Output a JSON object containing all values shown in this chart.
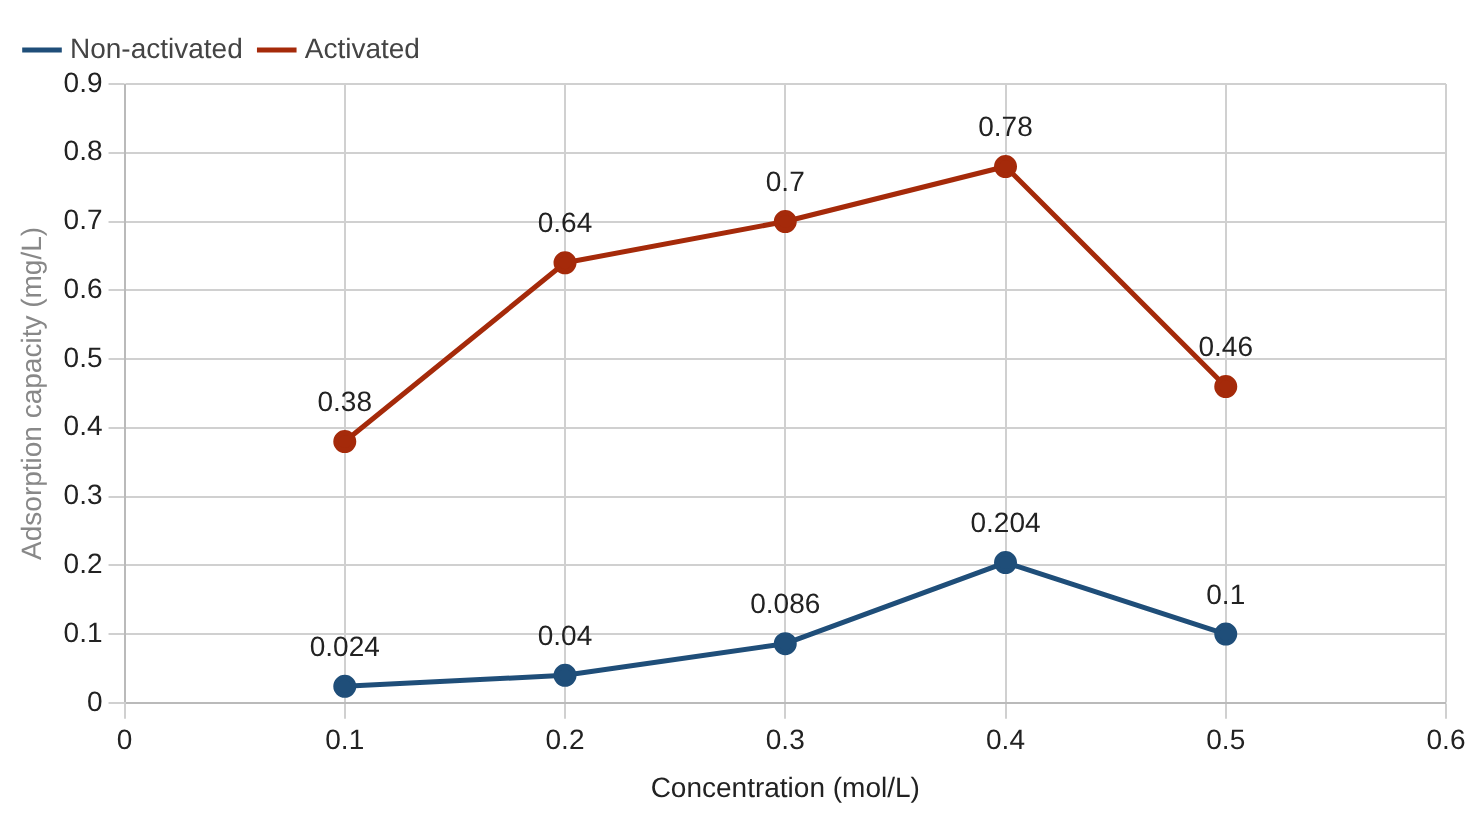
{
  "chart_data": {
    "type": "line",
    "xlabel": "Concentration (mol/L)",
    "ylabel": "Adsorption capacity (mg/L)",
    "x": [
      0.1,
      0.2,
      0.3,
      0.4,
      0.5
    ],
    "series": [
      {
        "name": "Non-activated",
        "color": "#1f4e79",
        "values": [
          0.024,
          0.04,
          0.086,
          0.204,
          0.1
        ]
      },
      {
        "name": "Activated",
        "color": "#a52a0a",
        "values": [
          0.38,
          0.64,
          0.7,
          0.78,
          0.46
        ]
      }
    ],
    "xlim": [
      0,
      0.6
    ],
    "xticks": [
      0,
      0.1,
      0.2,
      0.3,
      0.4,
      0.5,
      0.6
    ],
    "ylim": [
      0,
      0.9
    ],
    "yticks": [
      0,
      0.1,
      0.2,
      0.3,
      0.4,
      0.5,
      0.6,
      0.7,
      0.8,
      0.9
    ],
    "grid": true,
    "legend": "top left",
    "marker": "circle",
    "line_style": "solid",
    "data_labels": true
  }
}
